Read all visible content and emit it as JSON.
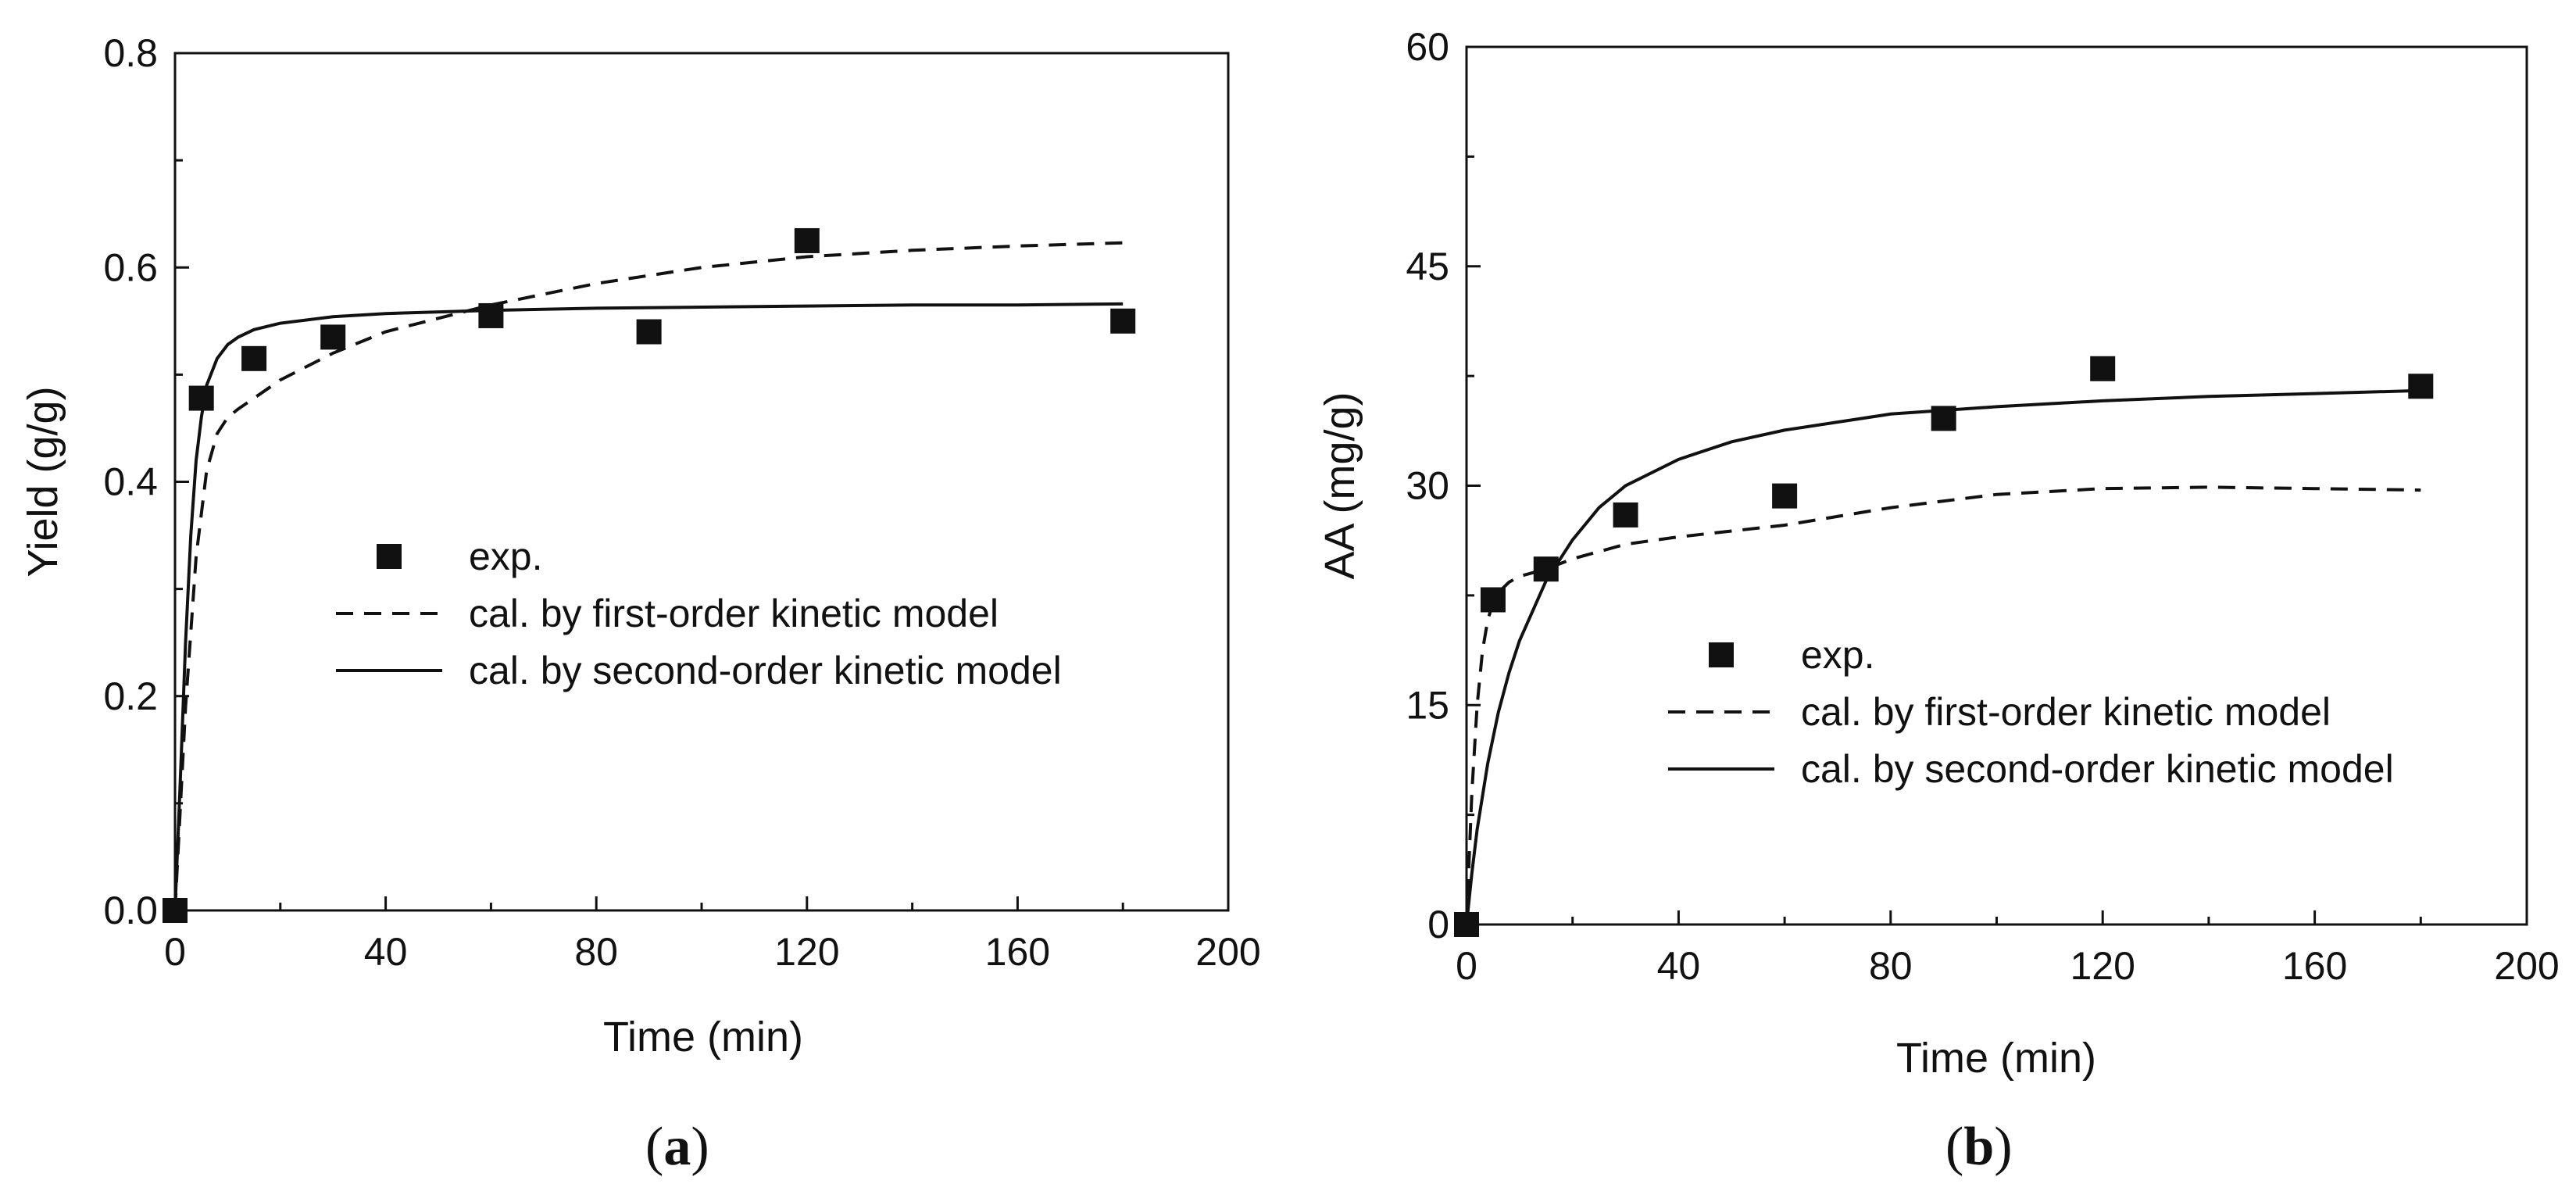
{
  "chart_data": [
    {
      "type": "scatter",
      "panel_label": "a",
      "xlabel": "Time (min)",
      "ylabel": "Yield (g/g)",
      "xlim": [
        0,
        200
      ],
      "ylim": [
        0,
        0.8
      ],
      "xticks": [
        "0",
        "40",
        "80",
        "120",
        "160",
        "200"
      ],
      "yticks": [
        "0.0",
        "0.2",
        "0.4",
        "0.6",
        "0.8"
      ],
      "grid": false,
      "legend_position": "center-right",
      "series": [
        {
          "name": "exp.",
          "kind": "markers",
          "marker": "square",
          "x": [
            0,
            5,
            15,
            30,
            60,
            90,
            120,
            180
          ],
          "y": [
            0.0,
            0.478,
            0.515,
            0.535,
            0.555,
            0.54,
            0.625,
            0.55
          ]
        },
        {
          "name": "cal. by first-order kinetic model",
          "kind": "line",
          "style": "dashed",
          "x": [
            0,
            2,
            4,
            6,
            8,
            10,
            12,
            15,
            20,
            30,
            40,
            60,
            80,
            100,
            120,
            140,
            160,
            180
          ],
          "y": [
            0.0,
            0.19,
            0.33,
            0.41,
            0.445,
            0.46,
            0.468,
            0.478,
            0.495,
            0.52,
            0.54,
            0.565,
            0.585,
            0.6,
            0.61,
            0.616,
            0.62,
            0.623
          ]
        },
        {
          "name": "cal. by second-order kinetic model",
          "kind": "line",
          "style": "solid",
          "x": [
            0,
            1,
            2,
            3,
            4,
            5,
            6,
            8,
            10,
            12,
            15,
            20,
            30,
            40,
            60,
            80,
            100,
            120,
            140,
            160,
            180
          ],
          "y": [
            0.0,
            0.12,
            0.25,
            0.35,
            0.42,
            0.46,
            0.49,
            0.515,
            0.528,
            0.535,
            0.542,
            0.548,
            0.554,
            0.557,
            0.56,
            0.562,
            0.563,
            0.564,
            0.565,
            0.565,
            0.566
          ]
        }
      ]
    },
    {
      "type": "scatter",
      "panel_label": "b",
      "xlabel": "Time (min)",
      "ylabel": "AA (mg/g)",
      "xlim": [
        0,
        200
      ],
      "ylim": [
        0,
        60
      ],
      "xticks": [
        "0",
        "40",
        "80",
        "120",
        "160",
        "200"
      ],
      "yticks": [
        "0",
        "15",
        "30",
        "45",
        "60"
      ],
      "grid": false,
      "legend_position": "center-right",
      "series": [
        {
          "name": "exp.",
          "kind": "markers",
          "marker": "square",
          "x": [
            0,
            5,
            15,
            30,
            60,
            90,
            120,
            180
          ],
          "y": [
            0,
            22.2,
            24.3,
            28.0,
            29.3,
            34.6,
            38.0,
            36.8
          ]
        },
        {
          "name": "cal. by first-order kinetic model",
          "kind": "line",
          "style": "dashed",
          "x": [
            0,
            1,
            2,
            3,
            4,
            5,
            6,
            8,
            10,
            15,
            20,
            30,
            40,
            60,
            80,
            100,
            120,
            140,
            160,
            180
          ],
          "y": [
            0,
            9.0,
            15.0,
            18.7,
            20.8,
            22.0,
            22.7,
            23.4,
            23.8,
            24.3,
            25.0,
            26.0,
            26.5,
            27.3,
            28.5,
            29.4,
            29.8,
            29.9,
            29.8,
            29.7
          ]
        },
        {
          "name": "cal. by second-order kinetic model",
          "kind": "line",
          "style": "solid",
          "x": [
            0,
            1,
            2,
            4,
            6,
            8,
            10,
            15,
            20,
            25,
            30,
            40,
            50,
            60,
            80,
            100,
            120,
            140,
            160,
            180
          ],
          "y": [
            0,
            3.5,
            6.5,
            11.0,
            14.5,
            17.2,
            19.4,
            23.5,
            26.3,
            28.5,
            30.0,
            31.8,
            33.0,
            33.8,
            34.9,
            35.4,
            35.8,
            36.1,
            36.3,
            36.5
          ]
        }
      ]
    }
  ]
}
